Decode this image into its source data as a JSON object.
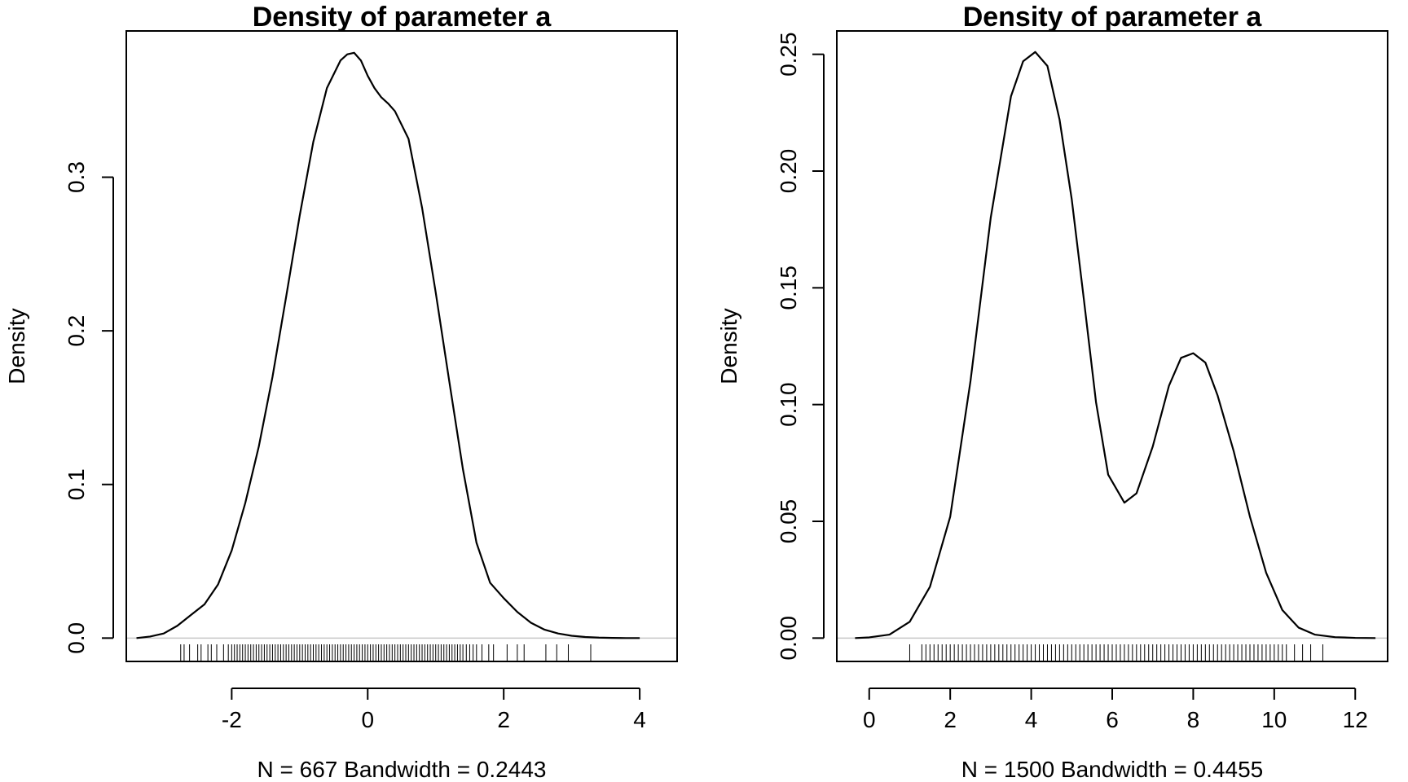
{
  "chart_data": [
    {
      "type": "line",
      "title": "Density of parameter a",
      "xlabel": "N = 667   Bandwidth = 0.2443",
      "ylabel": "Density",
      "xlim": [
        -3.55,
        4.55
      ],
      "ylim": [
        -0.0152,
        0.3952
      ],
      "xticks": [
        -2,
        0,
        2,
        4
      ],
      "yticks": [
        0.0,
        0.1,
        0.2,
        0.3
      ],
      "ytick_labels": [
        "0.0",
        "0.1",
        "0.2",
        "0.3"
      ],
      "grid": false,
      "series": [
        {
          "x": [
            -3.4,
            -3.2,
            -3.0,
            -2.8,
            -2.6,
            -2.4,
            -2.2,
            -2.0,
            -1.8,
            -1.6,
            -1.4,
            -1.2,
            -1.0,
            -0.8,
            -0.6,
            -0.4,
            -0.3,
            -0.2,
            -0.1,
            0.0,
            0.1,
            0.2,
            0.3,
            0.4,
            0.6,
            0.8,
            1.0,
            1.2,
            1.4,
            1.6,
            1.8,
            2.0,
            2.2,
            2.4,
            2.6,
            2.8,
            3.0,
            3.2,
            3.4,
            3.6,
            3.8,
            4.0
          ],
          "y": [
            0.0,
            0.001,
            0.003,
            0.008,
            0.015,
            0.022,
            0.035,
            0.057,
            0.088,
            0.125,
            0.17,
            0.222,
            0.275,
            0.323,
            0.358,
            0.376,
            0.38,
            0.381,
            0.376,
            0.366,
            0.358,
            0.352,
            0.348,
            0.343,
            0.325,
            0.28,
            0.225,
            0.167,
            0.11,
            0.062,
            0.036,
            0.026,
            0.017,
            0.01,
            0.0055,
            0.003,
            0.0015,
            0.0007,
            0.0003,
            0.0001,
            0.0,
            0.0
          ]
        }
      ],
      "rug": [
        -2.75,
        -2.7,
        -2.62,
        -2.5,
        -2.45,
        -2.35,
        -2.3,
        -2.22,
        -2.12,
        -2.05,
        -2.0,
        -1.96,
        -1.92,
        -1.88,
        -1.84,
        -1.8,
        -1.76,
        -1.72,
        -1.68,
        -1.64,
        -1.6,
        -1.56,
        -1.52,
        -1.48,
        -1.44,
        -1.4,
        -1.36,
        -1.32,
        -1.28,
        -1.24,
        -1.2,
        -1.16,
        -1.12,
        -1.08,
        -1.04,
        -1.0,
        -0.96,
        -0.92,
        -0.88,
        -0.84,
        -0.8,
        -0.76,
        -0.72,
        -0.68,
        -0.64,
        -0.6,
        -0.56,
        -0.52,
        -0.48,
        -0.44,
        -0.4,
        -0.36,
        -0.32,
        -0.28,
        -0.24,
        -0.2,
        -0.16,
        -0.12,
        -0.08,
        -0.04,
        0.0,
        0.04,
        0.08,
        0.12,
        0.16,
        0.2,
        0.24,
        0.28,
        0.32,
        0.36,
        0.4,
        0.44,
        0.48,
        0.52,
        0.56,
        0.6,
        0.64,
        0.68,
        0.72,
        0.76,
        0.8,
        0.84,
        0.88,
        0.92,
        0.96,
        1.0,
        1.04,
        1.08,
        1.12,
        1.16,
        1.2,
        1.24,
        1.28,
        1.32,
        1.36,
        1.4,
        1.45,
        1.5,
        1.55,
        1.6,
        1.68,
        1.78,
        1.85,
        2.05,
        2.2,
        2.3,
        2.62,
        2.78,
        2.95,
        3.28
      ]
    },
    {
      "type": "line",
      "title": "Density of parameter a",
      "xlabel": "N = 1500   Bandwidth = 0.4455",
      "ylabel": "Density",
      "xlim": [
        -0.8,
        12.8
      ],
      "ylim": [
        -0.01,
        0.26
      ],
      "xticks": [
        0,
        2,
        4,
        6,
        8,
        10,
        12
      ],
      "yticks": [
        0.0,
        0.05,
        0.1,
        0.15,
        0.2,
        0.25
      ],
      "ytick_labels": [
        "0.00",
        "0.05",
        "0.10",
        "0.15",
        "0.20",
        "0.25"
      ],
      "grid": false,
      "series": [
        {
          "x": [
            -0.35,
            0.0,
            0.5,
            1.0,
            1.5,
            2.0,
            2.5,
            3.0,
            3.5,
            3.8,
            4.1,
            4.4,
            4.7,
            5.0,
            5.3,
            5.6,
            5.9,
            6.3,
            6.6,
            7.0,
            7.4,
            7.7,
            8.0,
            8.3,
            8.6,
            9.0,
            9.4,
            9.8,
            10.2,
            10.6,
            11.0,
            11.5,
            12.0,
            12.5
          ],
          "y": [
            0.0,
            0.0003,
            0.0015,
            0.007,
            0.022,
            0.052,
            0.11,
            0.18,
            0.232,
            0.247,
            0.251,
            0.245,
            0.222,
            0.188,
            0.145,
            0.101,
            0.07,
            0.058,
            0.062,
            0.082,
            0.108,
            0.12,
            0.122,
            0.118,
            0.104,
            0.08,
            0.052,
            0.028,
            0.012,
            0.0045,
            0.0015,
            0.0004,
            0.0001,
            0.0
          ]
        }
      ],
      "rug": [
        1.0,
        1.3,
        1.4,
        1.5,
        1.6,
        1.7,
        1.8,
        1.9,
        2.0,
        2.1,
        2.2,
        2.3,
        2.4,
        2.5,
        2.6,
        2.7,
        2.8,
        2.9,
        3.0,
        3.1,
        3.2,
        3.3,
        3.4,
        3.5,
        3.6,
        3.7,
        3.8,
        3.9,
        4.0,
        4.1,
        4.2,
        4.3,
        4.4,
        4.5,
        4.6,
        4.7,
        4.8,
        4.9,
        5.0,
        5.1,
        5.2,
        5.3,
        5.4,
        5.5,
        5.6,
        5.7,
        5.8,
        5.9,
        6.0,
        6.1,
        6.2,
        6.3,
        6.4,
        6.5,
        6.6,
        6.7,
        6.8,
        6.9,
        7.0,
        7.1,
        7.2,
        7.3,
        7.4,
        7.5,
        7.6,
        7.7,
        7.8,
        7.9,
        8.0,
        8.1,
        8.2,
        8.3,
        8.4,
        8.5,
        8.6,
        8.7,
        8.8,
        8.9,
        9.0,
        9.1,
        9.2,
        9.3,
        9.4,
        9.5,
        9.6,
        9.7,
        9.8,
        9.9,
        10.0,
        10.1,
        10.2,
        10.3,
        10.5,
        10.7,
        10.9,
        11.2
      ]
    }
  ]
}
